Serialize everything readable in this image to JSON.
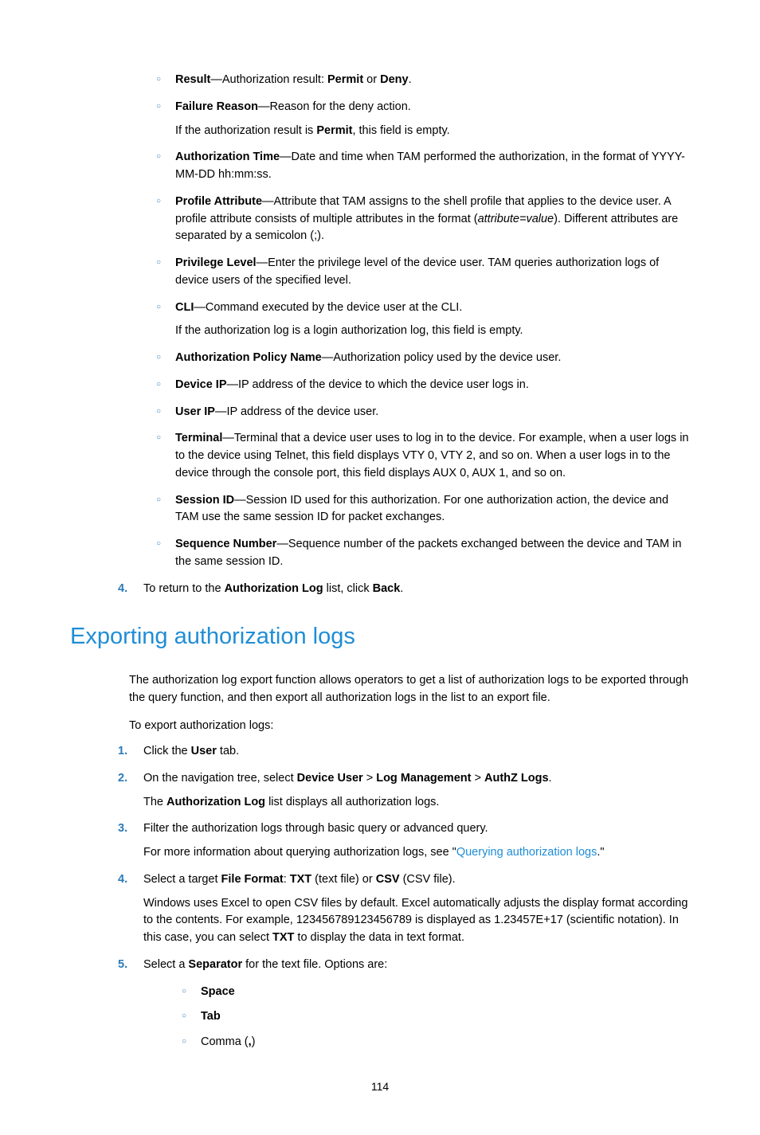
{
  "fields": {
    "result": {
      "label": "Result",
      "desc": "—Authorization result: ",
      "val1": "Permit",
      "or": " or ",
      "val2": "Deny",
      "end": "."
    },
    "failure": {
      "label": "Failure Reason",
      "desc": "—Reason for the deny action.",
      "follow_pre": "If the authorization result is ",
      "follow_bold": "Permit",
      "follow_post": ", this field is empty."
    },
    "authtime": {
      "label": "Authorization Time",
      "desc": "—Date and time when TAM performed the authorization, in the format of YYYY-MM-DD hh:mm:ss."
    },
    "profile": {
      "label": "Profile Attribute",
      "desc_pre": "—Attribute that TAM assigns to the shell profile that applies to the device user. A profile attribute consists of multiple attributes in the format (",
      "desc_italic": "attribute=value",
      "desc_post": "). Different attributes are separated by a semicolon (;)."
    },
    "privlevel": {
      "label": "Privilege Level",
      "desc": "—Enter the privilege level of the device user. TAM queries authorization logs of device users of the specified level."
    },
    "cli": {
      "label": "CLI",
      "desc": "—Command executed by the device user at the CLI.",
      "follow": "If the authorization log is a login authorization log, this field is empty."
    },
    "authpolicy": {
      "label": "Authorization Policy Name",
      "desc": "—Authorization policy used by the device user."
    },
    "deviceip": {
      "label": "Device IP",
      "desc": "—IP address of the device to which the device user logs in."
    },
    "userip": {
      "label": "User IP",
      "desc": "—IP address of the device user."
    },
    "terminal": {
      "label": "Terminal",
      "desc": "—Terminal that a device user uses to log in to the device. For example, when a user logs in to the device using Telnet, this field displays VTY 0, VTY 2, and so on. When a user logs in to the device through the console port, this field displays AUX 0, AUX 1, and so on."
    },
    "sessionid": {
      "label": "Session ID",
      "desc": "—Session ID used for this authorization. For one authorization action, the device and TAM use the same session ID for packet exchanges."
    },
    "seqnum": {
      "label": "Sequence Number",
      "desc": "—Sequence number of the packets exchanged between the device and TAM in the same session ID."
    }
  },
  "step4top": {
    "num": "4.",
    "pre": "To return to the ",
    "bold1": "Authorization Log",
    "mid": " list, click ",
    "bold2": "Back",
    "end": "."
  },
  "heading": "Exporting authorization logs",
  "intro": "The authorization log export function allows operators to get a list of authorization logs to be exported through the query function, and then export all authorization logs in the list to an export file.",
  "lead": "To export authorization logs:",
  "steps": {
    "s1": {
      "num": "1.",
      "pre": "Click the ",
      "bold": "User",
      "post": " tab."
    },
    "s2": {
      "num": "2.",
      "pre": "On the navigation tree, select ",
      "b1": "Device User",
      "sep1": " > ",
      "b2": "Log Management",
      "sep2": " > ",
      "b3": "AuthZ Logs",
      "end": ".",
      "follow_pre": "The ",
      "follow_bold": "Authorization Log",
      "follow_post": " list displays all authorization logs."
    },
    "s3": {
      "num": "3.",
      "text": "Filter the authorization logs through basic query or advanced query.",
      "follow_pre": "For more information about querying authorization logs, see \"",
      "follow_link": "Querying authorization logs",
      "follow_post": ".\""
    },
    "s4": {
      "num": "4.",
      "pre": "Select a target ",
      "b1": "File Format",
      "mid1": ": ",
      "b2": "TXT",
      "mid2": " (text file) or ",
      "b3": "CSV",
      "end": " (CSV file).",
      "follow_pre": "Windows uses Excel to open CSV files by default. Excel automatically adjusts the display format according to the contents. For example, 123456789123456789 is displayed as 1.23457E+17 (scientific notation). In this case, you can select ",
      "follow_bold": "TXT",
      "follow_post": " to display the data in text format."
    },
    "s5": {
      "num": "5.",
      "pre": "Select a ",
      "bold": "Separator",
      "post": " for the text file. Options are:"
    }
  },
  "seps": {
    "space": "Space",
    "tab": "Tab",
    "comma_pre": "Comma (",
    "comma_bold": ",",
    "comma_post": ")"
  },
  "pagenum": "114"
}
